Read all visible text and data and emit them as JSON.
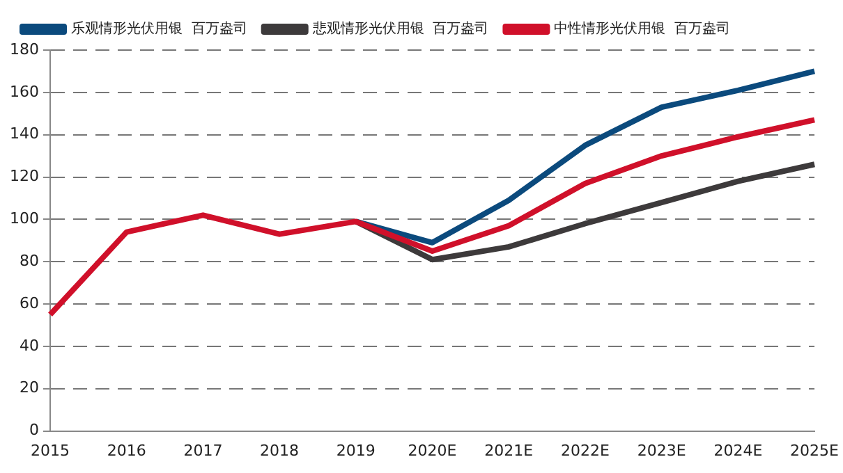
{
  "chart_data": {
    "type": "line",
    "categories": [
      "2015",
      "2016",
      "2017",
      "2018",
      "2019",
      "2020E",
      "2021E",
      "2022E",
      "2023E",
      "2024E",
      "2025E"
    ],
    "series": [
      {
        "name": "乐观情形光伏用银  百万盎司",
        "color": "#0b4a7d",
        "values": [
          null,
          null,
          null,
          null,
          99,
          89,
          109,
          135,
          153,
          161,
          170
        ]
      },
      {
        "name": "悲观情形光伏用银  百万盎司",
        "color": "#3d3a3b",
        "values": [
          null,
          null,
          null,
          null,
          99,
          81,
          87,
          98,
          108,
          118,
          126
        ]
      },
      {
        "name": "中性情形光伏用银  百万盎司",
        "color": "#d0102a",
        "values": [
          55,
          94,
          102,
          93,
          99,
          85,
          97,
          117,
          130,
          139,
          147
        ]
      }
    ],
    "ylim": [
      0,
      180
    ],
    "yticks": [
      0,
      20,
      40,
      60,
      80,
      100,
      120,
      140,
      160,
      180
    ],
    "grid": "y",
    "legend": "top",
    "marker": "none",
    "line_style": "solid"
  }
}
